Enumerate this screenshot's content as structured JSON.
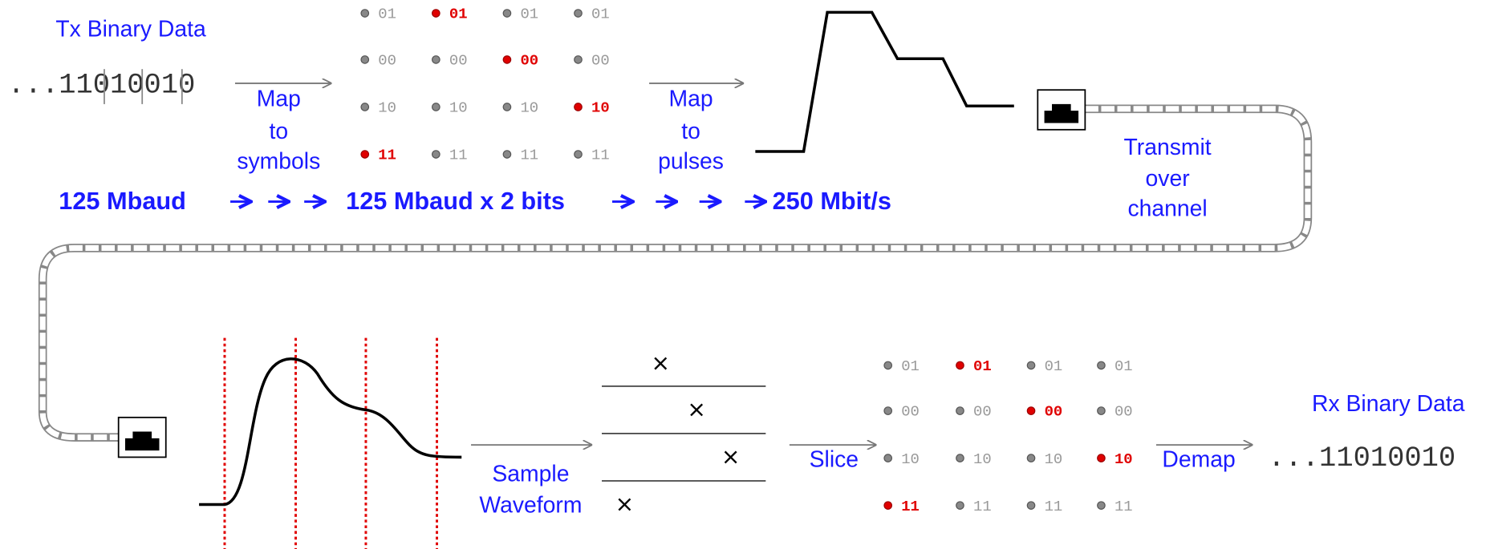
{
  "tx": {
    "label": "Tx Binary Data",
    "bits": "...11010010"
  },
  "map_symbols": [
    "Map",
    "to",
    "symbols"
  ],
  "map_pulses": [
    "Map",
    "to",
    "pulses"
  ],
  "transmit": [
    "Transmit",
    "over",
    "channel"
  ],
  "rates": [
    "125 Mbaud",
    "125 Mbaud x 2 bits",
    "250 Mbit/s"
  ],
  "tx_grid": {
    "rows": [
      [
        "01",
        "01",
        "01",
        "01"
      ],
      [
        "00",
        "00",
        "00",
        "00"
      ],
      [
        "10",
        "10",
        "10",
        "10"
      ],
      [
        "11",
        "11",
        "11",
        "11"
      ]
    ],
    "selected_row_per_column": [
      3,
      0,
      1,
      2
    ]
  },
  "sample": [
    "Sample",
    "Waveform"
  ],
  "slice": "Slice",
  "rx_grid": {
    "rows": [
      [
        "01",
        "01",
        "01",
        "01"
      ],
      [
        "00",
        "00",
        "00",
        "00"
      ],
      [
        "10",
        "10",
        "10",
        "10"
      ],
      [
        "11",
        "11",
        "11",
        "11"
      ]
    ],
    "selected_row_per_column": [
      3,
      0,
      1,
      2
    ]
  },
  "demap": "Demap",
  "rx": {
    "label": "Rx Binary Data",
    "bits": "...11010010"
  }
}
